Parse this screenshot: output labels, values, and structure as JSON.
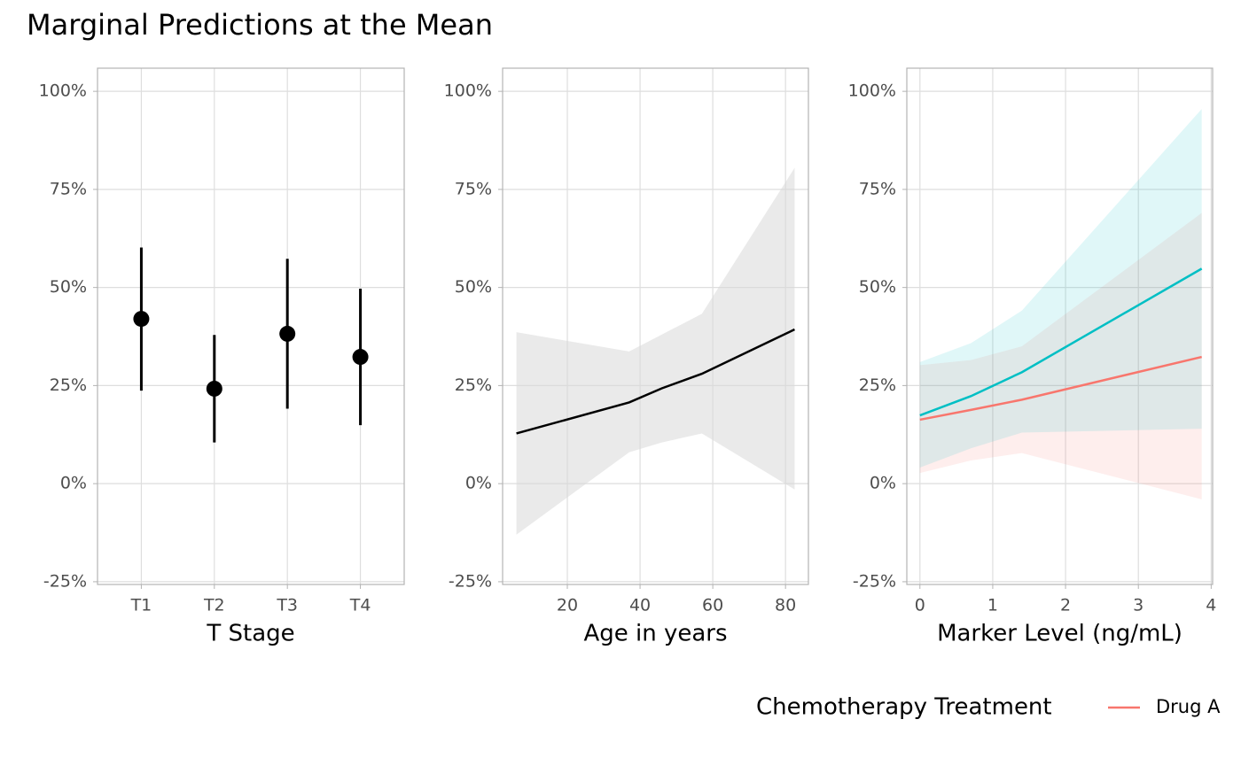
{
  "title": "Marginal Predictions at the Mean",
  "chart_data": [
    {
      "type": "pointrange",
      "x_label": "T Stage",
      "categories": [
        "T1",
        "T2",
        "T3",
        "T4"
      ],
      "values": [
        42,
        24.2,
        38.2,
        32.3
      ],
      "lower": [
        23.7,
        10.5,
        19.1,
        14.9
      ],
      "upper": [
        60.2,
        37.9,
        57.3,
        49.7
      ],
      "color": "#000000",
      "ylim": [
        -25.7,
        105.9
      ],
      "yticks": [
        {
          "value": -25,
          "label": "-25%"
        },
        {
          "value": 0,
          "label": "0%"
        },
        {
          "value": 25,
          "label": "25%"
        },
        {
          "value": 50,
          "label": "50%"
        },
        {
          "value": 75,
          "label": "75%"
        },
        {
          "value": 100,
          "label": "100%"
        }
      ],
      "grid": true
    },
    {
      "type": "ribbon",
      "x_label": "Age in years",
      "xlim": [
        2.2,
        86.3
      ],
      "xticks": [
        20,
        40,
        60,
        80
      ],
      "ylim": [
        -25.7,
        105.9
      ],
      "yticks": [
        {
          "value": -25,
          "label": "-25%"
        },
        {
          "value": 0,
          "label": "0%"
        },
        {
          "value": 25,
          "label": "25%"
        },
        {
          "value": 50,
          "label": "50%"
        },
        {
          "value": 75,
          "label": "75%"
        },
        {
          "value": 100,
          "label": "100%"
        }
      ],
      "grid": true,
      "series": [
        {
          "color": "#000000",
          "fill": "#d9d9d9",
          "x": [
            6,
            37,
            46,
            57,
            82.5
          ],
          "values": [
            12.8,
            20.7,
            24.3,
            28,
            39.3
          ],
          "lower": [
            -13,
            8,
            10.5,
            12.8,
            -1.5
          ],
          "upper": [
            38.6,
            33.7,
            38,
            43.3,
            80.5
          ]
        }
      ]
    },
    {
      "type": "ribbon",
      "x_label": "Marker Level (ng/mL)",
      "xlim": [
        -0.18,
        4.02
      ],
      "xticks": [
        0,
        1,
        2,
        3,
        4
      ],
      "ylim": [
        -25.7,
        105.9
      ],
      "yticks": [
        {
          "value": -25,
          "label": "-25%"
        },
        {
          "value": 0,
          "label": "0%"
        },
        {
          "value": 25,
          "label": "25%"
        },
        {
          "value": 50,
          "label": "50%"
        },
        {
          "value": 75,
          "label": "75%"
        },
        {
          "value": 100,
          "label": "100%"
        }
      ],
      "grid": true,
      "legend": "bottom",
      "legend_title": "Chemotherapy Treatment",
      "series": [
        {
          "name": "Drug A",
          "color": "#F8766D",
          "fill": "#F8766D",
          "x": [
            0,
            0.7,
            1.4,
            3.87
          ],
          "values": [
            16.3,
            18.8,
            21.4,
            32.3
          ],
          "lower": [
            2.7,
            5.9,
            7.8,
            -4
          ],
          "upper": [
            30.2,
            31.5,
            35,
            69
          ]
        },
        {
          "color": "#00BFC4",
          "fill": "#00BFC4",
          "x": [
            0,
            0.7,
            1.4,
            3.87
          ],
          "values": [
            17.4,
            22.3,
            28.4,
            54.8
          ],
          "lower": [
            4.1,
            9,
            13,
            14
          ],
          "upper": [
            31,
            35.8,
            44.1,
            95.5
          ]
        }
      ]
    }
  ]
}
